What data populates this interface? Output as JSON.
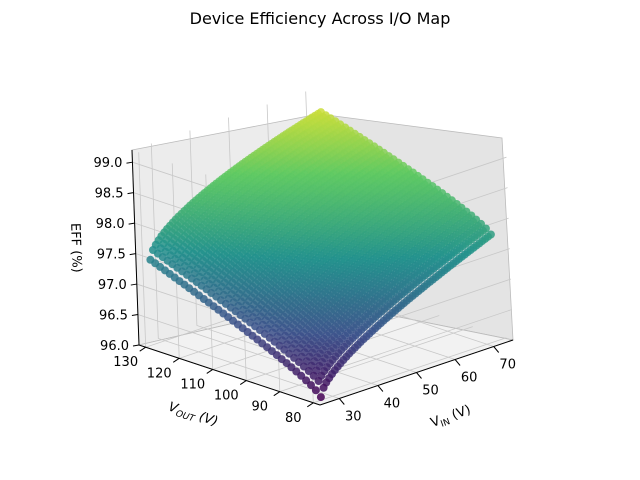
{
  "chart_data": {
    "type": "scatter",
    "title": "Device Efficiency Across I/O Map",
    "xlabel_main": "V",
    "xlabel_sub": "IN",
    "xlabel_unit": " (V)",
    "ylabel_main": "V",
    "ylabel_sub": "OUT",
    "ylabel_unit": " (V)",
    "zlabel": "EFF (%)",
    "xlim": [
      25,
      75
    ],
    "ylim": [
      78,
      132
    ],
    "zlim": [
      96.0,
      99.2
    ],
    "x_ticks": [
      "30",
      "40",
      "50",
      "60",
      "70"
    ],
    "y_ticks": [
      "80",
      "90",
      "100",
      "110",
      "120",
      "130"
    ],
    "z_ticks": [
      "96.0",
      "96.5",
      "97.0",
      "97.5",
      "98.0",
      "98.5",
      "99.0"
    ],
    "colormap": "viridis",
    "colors": [
      "#440154",
      "#3b528b",
      "#21918c",
      "#5ec962",
      "#fde725"
    ],
    "grid": true,
    "vin_range": [
      27,
      72
    ],
    "vout_range": [
      80,
      130
    ],
    "eff_min": 96.05,
    "eff_max": 99.1
  }
}
